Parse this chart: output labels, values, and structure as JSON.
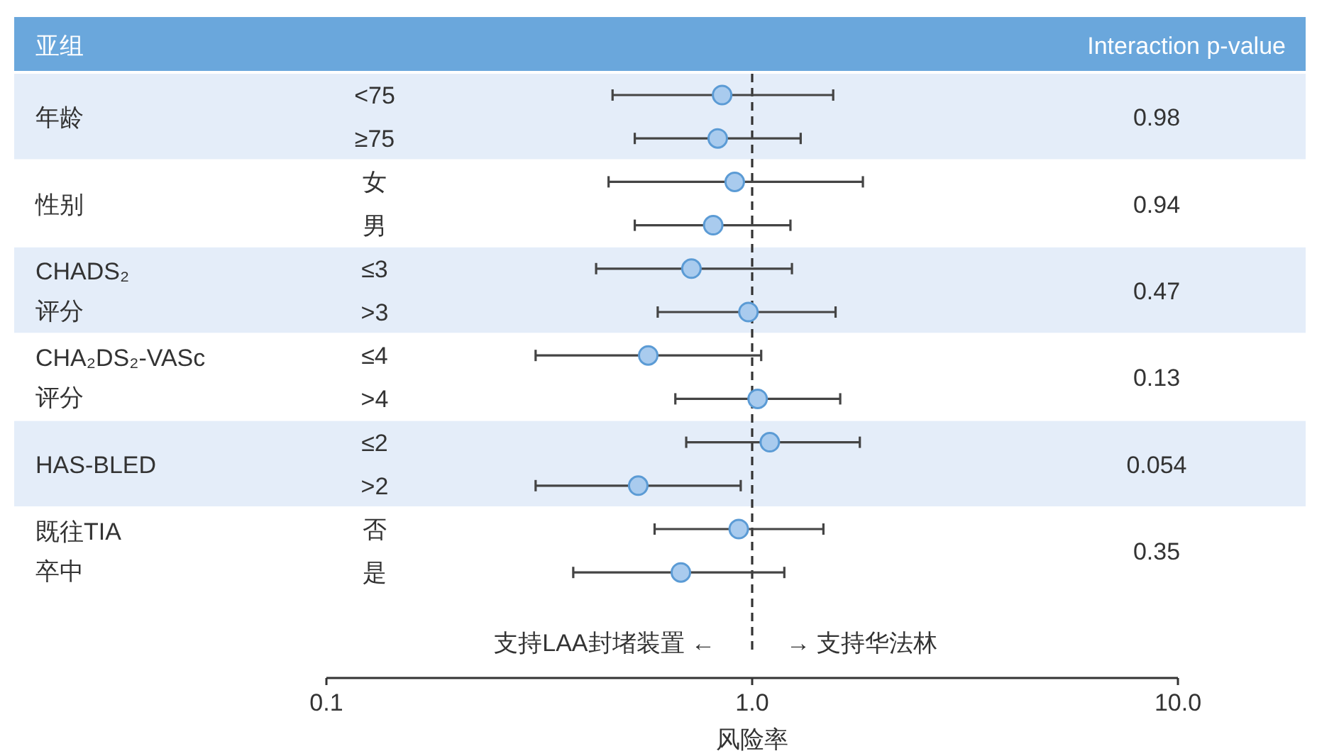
{
  "chart_data": {
    "type": "scatter",
    "orientation": "horizontal",
    "log": "x",
    "marker": "circle",
    "categories": [
      "<75",
      "≥75",
      "女",
      "男",
      "≤3",
      ">3",
      "≤4",
      ">4",
      "≤2",
      ">2",
      "否",
      "是"
    ],
    "series": [
      {
        "color": "#a9cbee",
        "values": [
          0.85,
          0.83,
          0.91,
          0.81,
          0.72,
          0.98,
          0.57,
          1.03,
          1.1,
          0.54,
          0.93,
          0.68
        ],
        "errors": [
          [
            0.47,
            1.55
          ],
          [
            0.53,
            1.3
          ],
          [
            0.46,
            1.82
          ],
          [
            0.53,
            1.23
          ],
          [
            0.43,
            1.24
          ],
          [
            0.6,
            1.57
          ],
          [
            0.31,
            1.05
          ],
          [
            0.66,
            1.61
          ],
          [
            0.7,
            1.79
          ],
          [
            0.31,
            0.94
          ],
          [
            0.59,
            1.47
          ],
          [
            0.38,
            1.19
          ]
        ]
      }
    ],
    "xlim": [
      0.1,
      10
    ],
    "xticks": [
      {
        "value": 0.1,
        "label": "0.1"
      },
      {
        "value": 1,
        "label": "1.0"
      },
      {
        "value": 10,
        "label": "10.0"
      }
    ],
    "xlabel": "风险率",
    "ref_lines": [
      {
        "axis": "x",
        "value": 1,
        "line_style": "dashed",
        "color": "#333333"
      }
    ],
    "annotations": [
      "亚组",
      "Interaction p-value",
      "年龄",
      "0.98",
      "性别",
      "0.94",
      "CHADS₂\n评分",
      "0.47",
      "CHA₂DS₂-VASc\n评分",
      "0.13",
      "HAS-BLED",
      "0.054",
      "既往TIA\n卒中",
      "0.35",
      "支持LAA封堵装置 ←",
      "→ 支持华法林"
    ]
  }
}
